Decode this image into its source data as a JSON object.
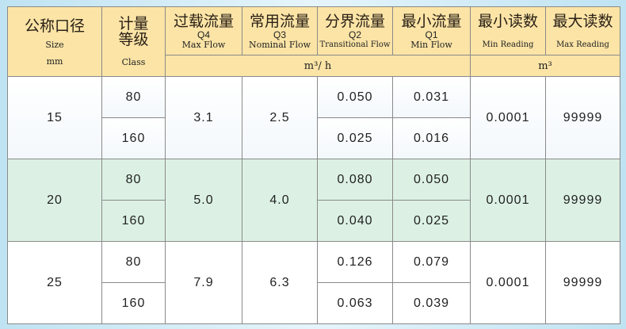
{
  "header": {
    "size": {
      "cn": "公称口径",
      "en": "Size",
      "unit": "mm"
    },
    "class": {
      "cn": "计量等级",
      "en": "Class"
    },
    "q4": {
      "cn": "过载流量",
      "code": "Q4",
      "en": "Max Flow"
    },
    "q3": {
      "cn": "常用流量",
      "code": "Q3",
      "en": "Nominal Flow"
    },
    "q2": {
      "cn": "分界流量",
      "code": "Q2",
      "en": "Transitional Flow"
    },
    "q1": {
      "cn": "最小流量",
      "code": "Q1",
      "en": "Min Flow"
    },
    "min_reading": {
      "cn": "最小读数",
      "en": "Min Reading"
    },
    "max_reading": {
      "cn": "最大读数",
      "en": "Max Reading"
    },
    "flow_unit": "m³/ h",
    "reading_unit": "m³"
  },
  "rows": [
    {
      "size": "15",
      "q4": "3.1",
      "q3": "2.5",
      "min": "0.0001",
      "max": "99999",
      "sub": [
        {
          "class": "80",
          "q2": "0.050",
          "q1": "0.031"
        },
        {
          "class": "160",
          "q2": "0.025",
          "q1": "0.016"
        }
      ]
    },
    {
      "size": "20",
      "q4": "5.0",
      "q3": "4.0",
      "min": "0.0001",
      "max": "99999",
      "sub": [
        {
          "class": "80",
          "q2": "0.080",
          "q1": "0.050"
        },
        {
          "class": "160",
          "q2": "0.040",
          "q1": "0.025"
        }
      ]
    },
    {
      "size": "25",
      "q4": "7.9",
      "q3": "6.3",
      "min": "0.0001",
      "max": "99999",
      "sub": [
        {
          "class": "80",
          "q2": "0.126",
          "q1": "0.079"
        },
        {
          "class": "160",
          "q2": "0.063",
          "q1": "0.039"
        }
      ]
    }
  ],
  "colors": {
    "header": "#fbe4a6",
    "row_alt": "#dcf1e4",
    "border": "#8a8a8a"
  }
}
